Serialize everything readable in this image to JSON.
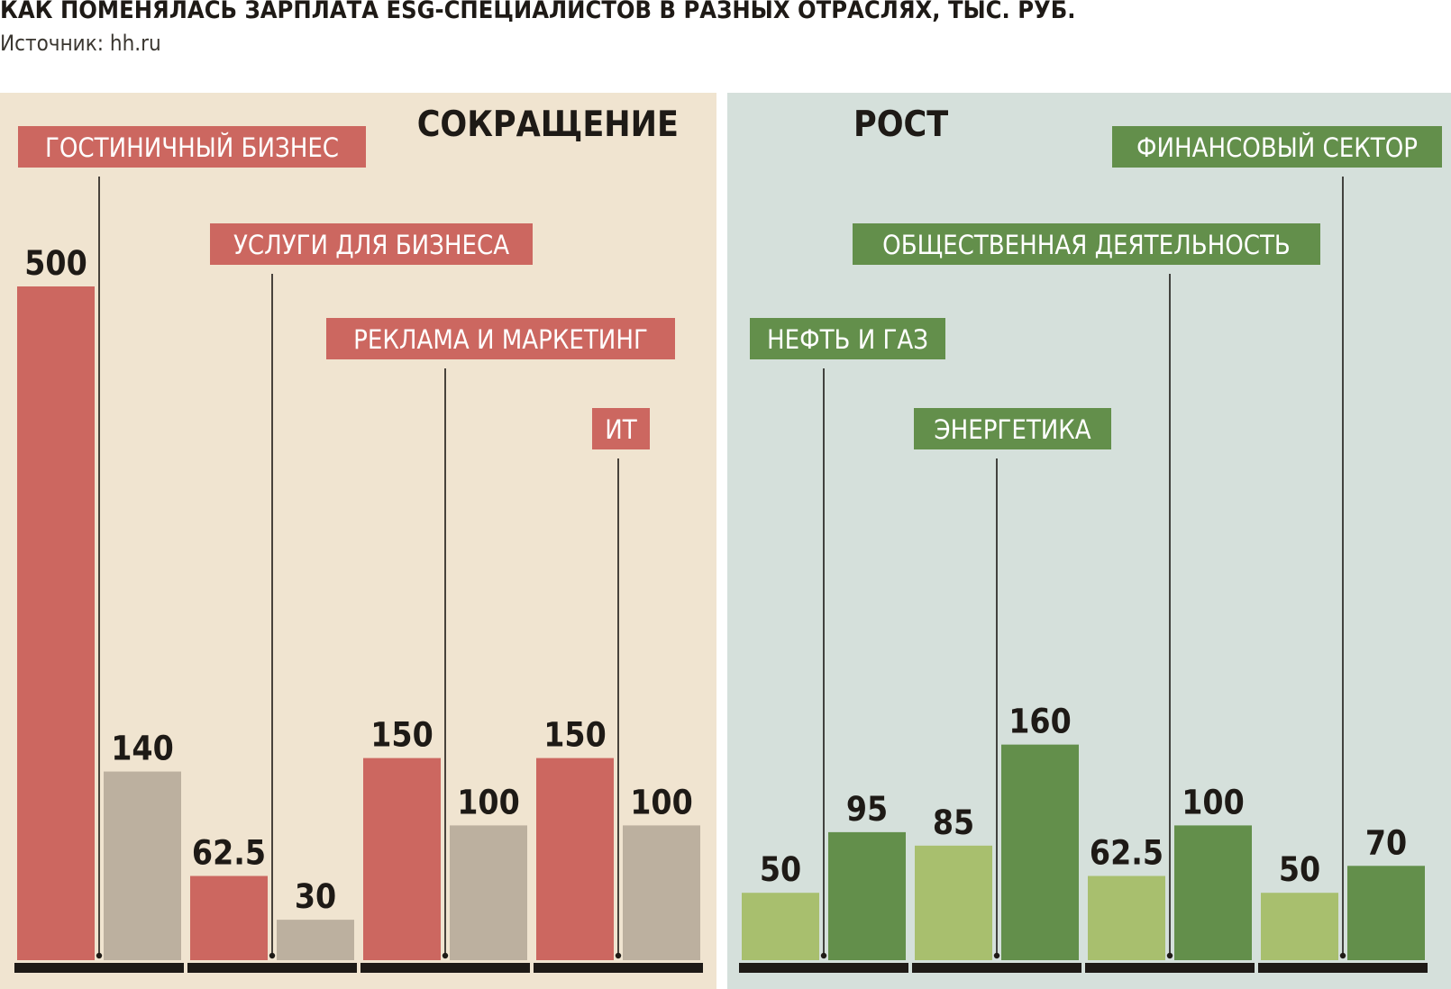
{
  "title": "КАК ПОМЕНЯЛАСЬ ЗАРПЛАТА ESG-СПЕЦИАЛИСТОВ В РАЗНЫХ ОТРАСЛЯХ, ТЫС. РУБ.",
  "source": "Источник: hh.ru",
  "colors": {
    "panel_left": "#f0e4d0",
    "panel_right": "#d5e0db",
    "red": "#cc6760",
    "beige": "#bcb09f",
    "light_green": "#a8bf6e",
    "dark_green": "#638f4b",
    "axis": "#1e1a16"
  },
  "chart_data": [
    {
      "type": "bar",
      "title": "СОКРАЩЕНИЕ",
      "ylim": [
        0,
        500
      ],
      "categories": [
        "ГОСТИНИЧНЫЙ БИЗНЕС",
        "УСЛУГИ ДЛЯ БИЗНЕСА",
        "РЕКЛАМА И МАРКЕТИНГ",
        "ИТ"
      ],
      "series": [
        {
          "color": "#cc6760",
          "values": [
            500,
            62.5,
            150,
            150
          ]
        },
        {
          "color": "#bcb09f",
          "values": [
            140,
            30,
            100,
            100
          ]
        }
      ],
      "value_labels": [
        [
          "500",
          "62.5",
          "150",
          "150"
        ],
        [
          "140",
          "30",
          "100",
          "100"
        ]
      ]
    },
    {
      "type": "bar",
      "title": "РОСТ",
      "ylim": [
        0,
        500
      ],
      "categories": [
        "НЕФТЬ И ГАЗ",
        "ЭНЕРГЕТИКА",
        "ОБЩЕСТВЕННАЯ ДЕЯТЕЛЬНОСТЬ",
        "ФИНАНСОВЫЙ СЕКТОР"
      ],
      "series": [
        {
          "color": "#a8bf6e",
          "values": [
            50,
            85,
            62.5,
            50
          ]
        },
        {
          "color": "#638f4b",
          "values": [
            95,
            160,
            100,
            70
          ]
        }
      ],
      "value_labels": [
        [
          "50",
          "85",
          "62.5",
          "50"
        ],
        [
          "95",
          "160",
          "100",
          "70"
        ]
      ]
    }
  ]
}
